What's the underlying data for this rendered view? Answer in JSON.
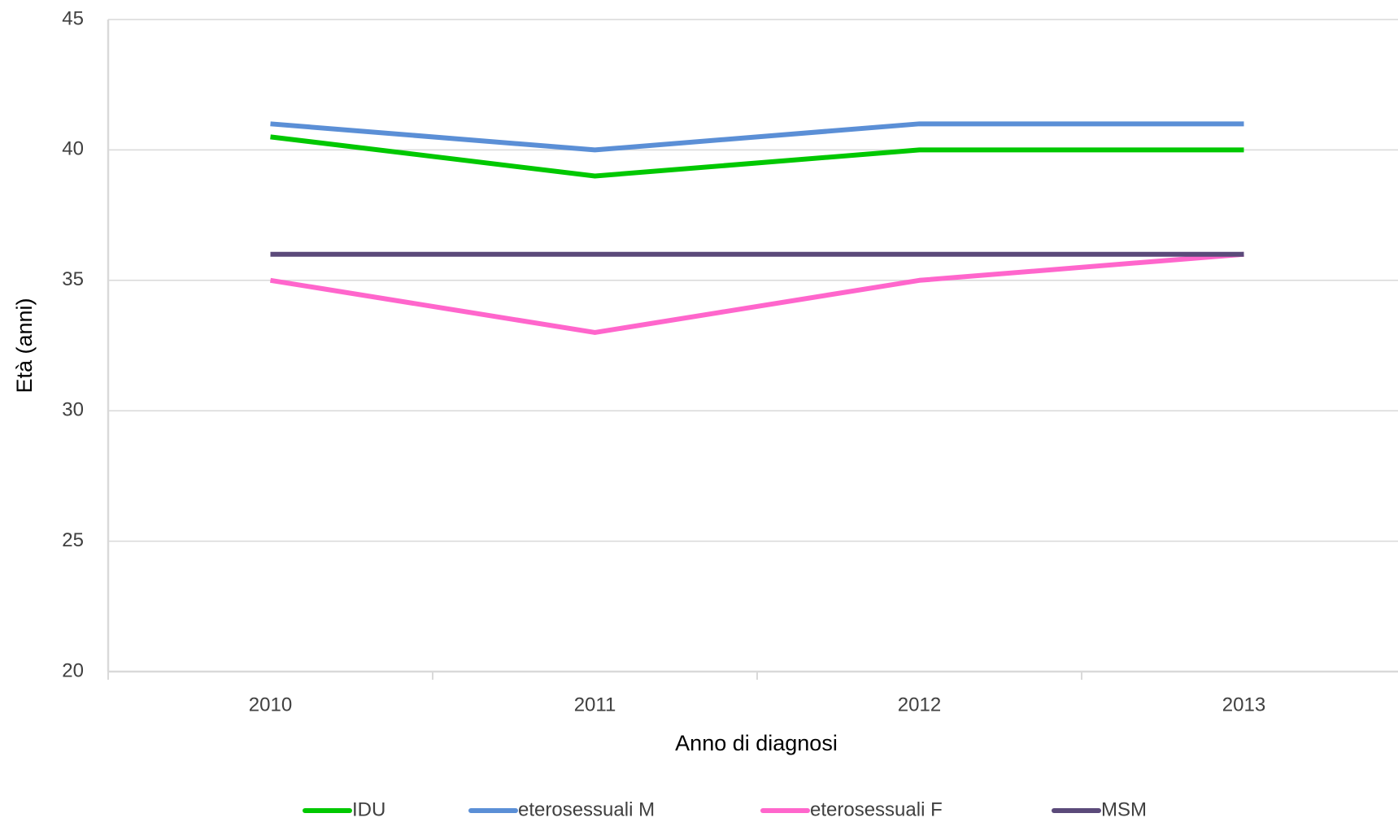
{
  "chart_data": {
    "type": "line",
    "x_label": "Anno di diagnosi",
    "y_label": "Età (anni)",
    "categories": [
      "2010",
      "2011",
      "2012",
      "2013"
    ],
    "series": [
      {
        "name": "IDU",
        "color": "#00c800",
        "values": [
          40.5,
          39,
          40,
          40
        ]
      },
      {
        "name": "eterosessuali M",
        "color": "#5b8fd6",
        "values": [
          41,
          40,
          41,
          41
        ]
      },
      {
        "name": "eterosessuali F",
        "color": "#ff66cc",
        "values": [
          35,
          33,
          35,
          36
        ]
      },
      {
        "name": "MSM",
        "color": "#5b4a7a",
        "values": [
          36,
          36,
          36,
          36
        ]
      }
    ],
    "ylim": [
      20,
      45
    ],
    "yticks": [
      20,
      25,
      30,
      35,
      40,
      45
    ],
    "grid": true
  }
}
